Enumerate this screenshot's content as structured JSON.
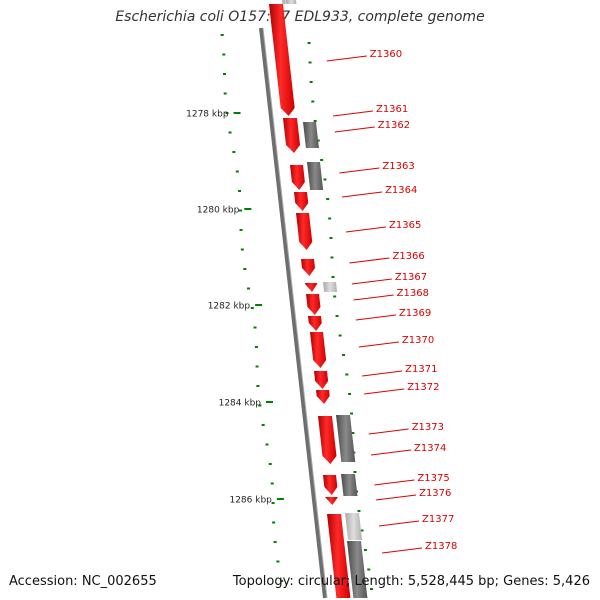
{
  "title": "Escherichia coli O157:H7 EDL933, complete genome",
  "footer": {
    "accession": "Accession: NC_002655",
    "summary": "Topology: circular; Length: 5,528,445 bp; Genes: 5,426"
  },
  "scale": {
    "ticks": [
      "1278 kbp",
      "1280 kbp",
      "1282 kbp",
      "1284 kbp",
      "1286 kbp"
    ]
  },
  "genes": [
    {
      "label": "Z1360",
      "strand": "plus"
    },
    {
      "label": "Z1361",
      "strand": "plus"
    },
    {
      "label": "Z1362",
      "strand": "minus"
    },
    {
      "label": "Z1363",
      "strand": "minus"
    },
    {
      "label": "Z1364",
      "strand": "plus"
    },
    {
      "label": "Z1365",
      "strand": "plus"
    },
    {
      "label": "Z1366",
      "strand": "plus"
    },
    {
      "label": "Z1367",
      "strand": "minus"
    },
    {
      "label": "Z1368",
      "strand": "plus"
    },
    {
      "label": "Z1369",
      "strand": "plus"
    },
    {
      "label": "Z1370",
      "strand": "plus"
    },
    {
      "label": "Z1371",
      "strand": "plus"
    },
    {
      "label": "Z1372",
      "strand": "plus"
    },
    {
      "label": "Z1373",
      "strand": "plus"
    },
    {
      "label": "Z1374",
      "strand": "minus"
    },
    {
      "label": "Z1375",
      "strand": "plus"
    },
    {
      "label": "Z1376",
      "strand": "minus"
    },
    {
      "label": "Z1377",
      "strand": "plus"
    },
    {
      "label": "Z1378",
      "strand": "minus"
    }
  ],
  "colors": {
    "forward_gene": "#ff0000",
    "reverse_gene": "#666666",
    "gc_dots": "#008000",
    "backbone": "#777777",
    "label_text": "#dd0000"
  }
}
